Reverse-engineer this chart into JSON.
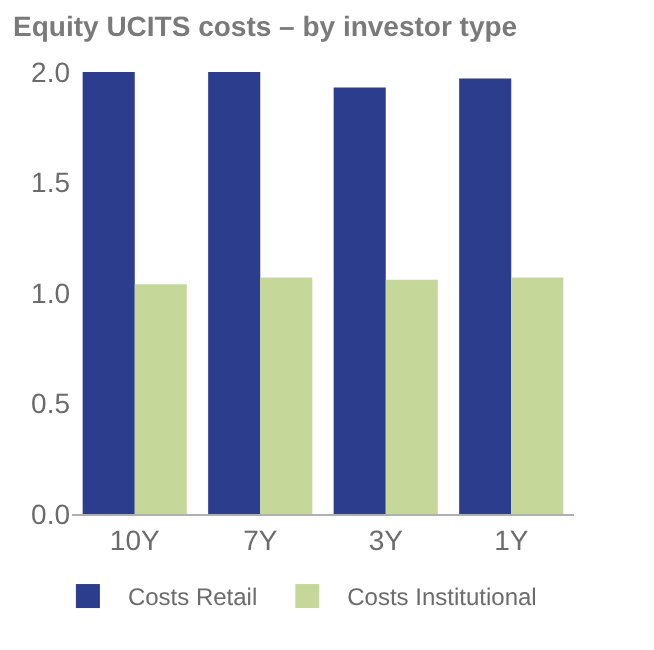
{
  "chart_data": {
    "type": "bar",
    "title": "Equity UCITS costs – by investor type",
    "categories": [
      "10Y",
      "7Y",
      "3Y",
      "1Y"
    ],
    "series": [
      {
        "name": "Costs Retail",
        "color": "#2b3d8c",
        "values": [
          2.0,
          2.0,
          1.93,
          1.97
        ]
      },
      {
        "name": "Costs Institutional",
        "color": "#c5d89a",
        "values": [
          1.04,
          1.07,
          1.06,
          1.07
        ]
      }
    ],
    "ylim": [
      0,
      2.0
    ],
    "yticks": [
      {
        "value": 0,
        "label": "0.0"
      },
      {
        "value": 0.5,
        "label": "0.5"
      },
      {
        "value": 1.0,
        "label": "1.0"
      },
      {
        "value": 1.5,
        "label": "1.5"
      },
      {
        "value": 2.0,
        "label": "2.0"
      }
    ],
    "legend": "bottom"
  }
}
